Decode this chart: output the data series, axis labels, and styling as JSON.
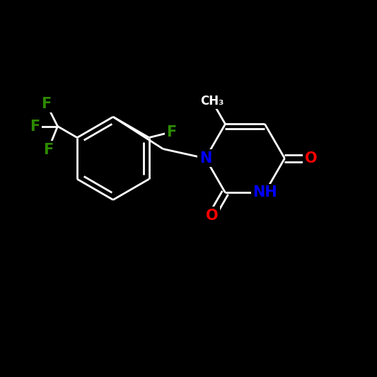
{
  "background_color": "#000000",
  "bond_color": "#ffffff",
  "atom_colors": {
    "N": "#0000ff",
    "NH": "#0000ff",
    "O": "#ff0000",
    "F": "#2d8c00",
    "C": "#ffffff"
  },
  "lw": 2.0,
  "fs": 15
}
